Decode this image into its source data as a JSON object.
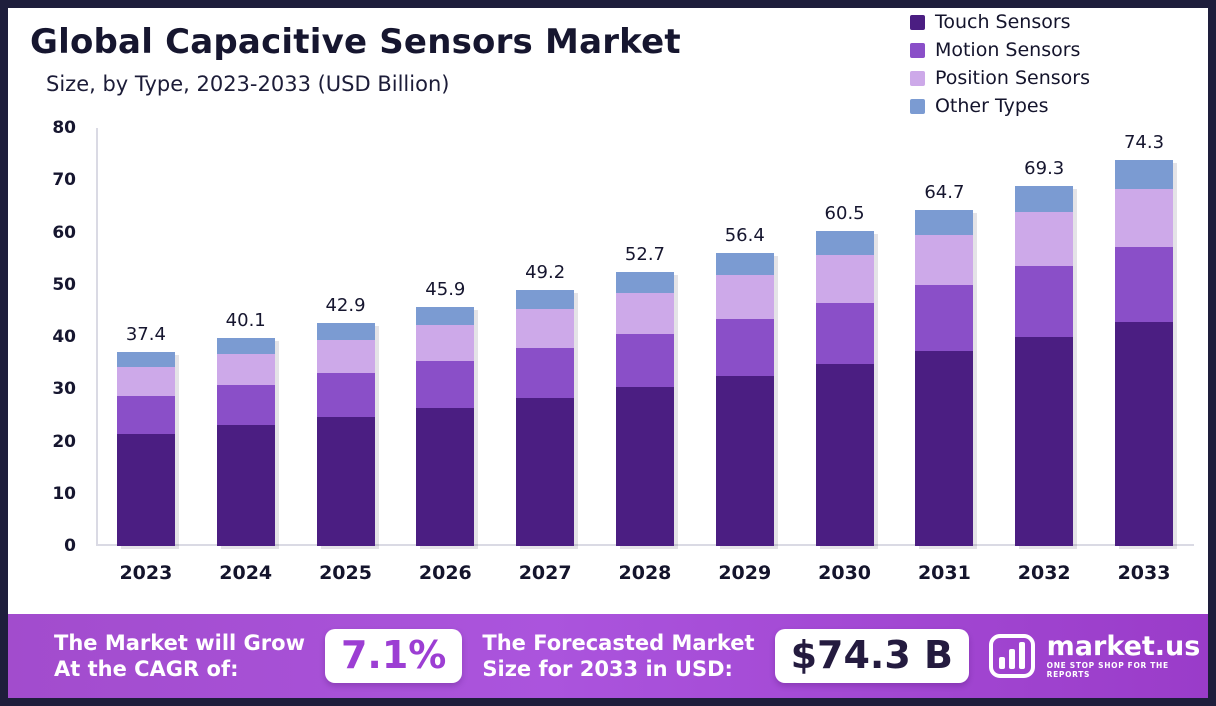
{
  "colors": {
    "frame": "#1e1e3c",
    "banner_purple": "#a24ccd",
    "text_dark": "#16162f"
  },
  "chart_data": {
    "type": "bar",
    "stacked": true,
    "title": "Global Capacitive Sensors Market",
    "subtitle": "Size, by Type, 2023-2033 (USD Billion)",
    "categories": [
      "2023",
      "2024",
      "2025",
      "2026",
      "2027",
      "2028",
      "2029",
      "2030",
      "2031",
      "2032",
      "2033"
    ],
    "series": [
      {
        "name": "Touch Sensors",
        "color": "#4b1e82",
        "values": [
          21.6,
          23.2,
          24.8,
          26.6,
          28.5,
          30.5,
          32.7,
          35.0,
          37.5,
          40.2,
          43.0
        ]
      },
      {
        "name": "Motion Sensors",
        "color": "#8a4fc8",
        "values": [
          7.3,
          7.8,
          8.4,
          9.0,
          9.6,
          10.3,
          11.0,
          11.8,
          12.7,
          13.6,
          14.6
        ]
      },
      {
        "name": "Position Sensors",
        "color": "#cda9e9",
        "values": [
          5.6,
          6.0,
          6.4,
          6.9,
          7.4,
          7.9,
          8.5,
          9.1,
          9.7,
          10.4,
          11.1
        ]
      },
      {
        "name": "Other Types",
        "color": "#7b9bd2",
        "values": [
          2.9,
          3.1,
          3.3,
          3.4,
          3.7,
          4.0,
          4.2,
          4.6,
          4.8,
          5.1,
          5.6
        ]
      }
    ],
    "totals": [
      "37.4",
      "40.1",
      "42.9",
      "45.9",
      "49.2",
      "52.7",
      "56.4",
      "60.5",
      "64.7",
      "69.3",
      "74.3"
    ],
    "ylim": [
      0,
      80
    ],
    "yticks": [
      0,
      10,
      20,
      30,
      40,
      50,
      60,
      70,
      80
    ],
    "grid": false,
    "legend_position": "top-right"
  },
  "banner": {
    "growth_line1": "The Market will Grow",
    "growth_line2": "At the CAGR of:",
    "cagr_value": "7.1%",
    "forecast_line1": "The Forecasted Market",
    "forecast_line2": "Size for 2033 in USD:",
    "forecast_value": "$74.3 B",
    "logo_text": "market.us",
    "logo_tagline": "ONE STOP SHOP FOR THE REPORTS"
  }
}
